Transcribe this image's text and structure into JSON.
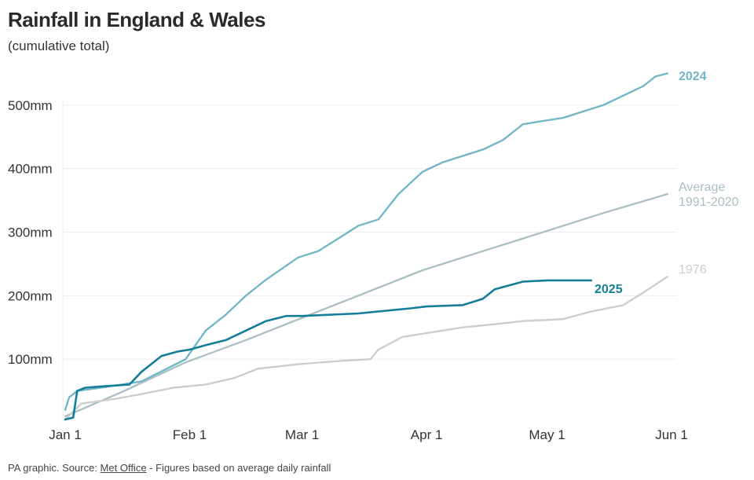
{
  "title": "Rainfall in England & Wales",
  "subtitle": "(cumulative total)",
  "footer": {
    "prefix": "PA graphic. Source: ",
    "source": "Met Office",
    "suffix": " - Figures based on average daily rainfall"
  },
  "chart_data": {
    "type": "line",
    "title": "Rainfall in England & Wales",
    "subtitle": "(cumulative total)",
    "x_ticks": [
      {
        "label": "Jan 1",
        "day": 0
      },
      {
        "label": "Feb 1",
        "day": 31
      },
      {
        "label": "Mar 1",
        "day": 59
      },
      {
        "label": "Apr 1",
        "day": 90
      },
      {
        "label": "May 1",
        "day": 120
      },
      {
        "label": "Jun 1",
        "day": 151
      }
    ],
    "y_ticks": [
      {
        "label": "100mm",
        "value": 100
      },
      {
        "label": "200mm",
        "value": 200
      },
      {
        "label": "300mm",
        "value": 300
      },
      {
        "label": "400mm",
        "value": 400
      },
      {
        "label": "500mm",
        "value": 500
      }
    ],
    "xlim": [
      "Jan 1",
      "Jun 1"
    ],
    "ylim": [
      0,
      550
    ],
    "grid": true,
    "series": [
      {
        "name": "Average 1991-2020",
        "label_lines": [
          "Average",
          "1991-2020"
        ],
        "color": "#a9bfc3",
        "x": [
          "Jan 1",
          "Jan 15",
          "Jan 31",
          "Feb 15",
          "Mar 1",
          "Mar 15",
          "Mar 31",
          "Apr 15",
          "Apr 30",
          "May 15",
          "May 31"
        ],
        "y": [
          10,
          48,
          95,
          130,
          165,
          200,
          240,
          270,
          300,
          330,
          360
        ]
      },
      {
        "name": "1976",
        "label_lines": [
          "1976"
        ],
        "color": "#cccccc",
        "x": [
          "Jan 1",
          "Jan 5",
          "Jan 14",
          "Jan 20",
          "Jan 28",
          "Feb 5",
          "Feb 12",
          "Feb 18",
          "Feb 28",
          "Mar 10",
          "Mar 18",
          "Mar 20",
          "Mar 26",
          "Apr 10",
          "Apr 18",
          "Apr 25",
          "May 5",
          "May 12",
          "May 20",
          "May 25",
          "May 31"
        ],
        "y": [
          5,
          30,
          38,
          45,
          55,
          60,
          70,
          85,
          92,
          97,
          100,
          115,
          135,
          150,
          155,
          160,
          163,
          175,
          185,
          205,
          230
        ]
      },
      {
        "name": "2024",
        "label_lines": [
          "2024"
        ],
        "color": "#6fb5c7",
        "x": [
          "Jan 1",
          "Jan 2",
          "Jan 4",
          "Jan 10",
          "Jan 20",
          "Jan 31",
          "Feb 5",
          "Feb 10",
          "Feb 15",
          "Feb 20",
          "Feb 28",
          "Mar 5",
          "Mar 10",
          "Mar 15",
          "Mar 20",
          "Mar 25",
          "Mar 31",
          "Apr 5",
          "Apr 10",
          "Apr 15",
          "Apr 20",
          "Apr 25",
          "Apr 30",
          "May 5",
          "May 10",
          "May 15",
          "May 20",
          "May 25",
          "May 28",
          "May 31"
        ],
        "y": [
          20,
          40,
          50,
          55,
          65,
          100,
          145,
          170,
          200,
          225,
          260,
          270,
          290,
          310,
          320,
          360,
          395,
          410,
          420,
          430,
          445,
          470,
          475,
          480,
          490,
          500,
          515,
          530,
          545,
          550
        ]
      },
      {
        "name": "2025",
        "label_lines": [
          "2025"
        ],
        "color": "#147e98",
        "x": [
          "Jan 1",
          "Jan 3",
          "Jan 4",
          "Jan 6",
          "Jan 10",
          "Jan 17",
          "Jan 20",
          "Jan 25",
          "Jan 29",
          "Feb 1",
          "Feb 5",
          "Feb 10",
          "Feb 15",
          "Feb 20",
          "Feb 25",
          "Mar 1",
          "Mar 15",
          "Mar 28",
          "Apr 1",
          "Apr 10",
          "Apr 15",
          "Apr 18",
          "Apr 25",
          "May 1",
          "May 12"
        ],
        "y": [
          5,
          8,
          50,
          55,
          57,
          60,
          80,
          105,
          112,
          115,
          122,
          130,
          145,
          160,
          168,
          168,
          172,
          180,
          183,
          185,
          195,
          210,
          222,
          224,
          224
        ]
      }
    ]
  }
}
